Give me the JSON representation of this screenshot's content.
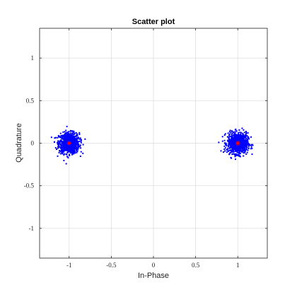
{
  "chart_data": {
    "type": "scatter",
    "title": "Scatter plot",
    "xlabel": "In-Phase",
    "ylabel": "Quadrature",
    "xlim": [
      -1.35,
      1.35
    ],
    "ylim": [
      -1.35,
      1.35
    ],
    "xticks": [
      -1,
      -0.5,
      0,
      0.5,
      1
    ],
    "xtick_labels": [
      "-1",
      "-0.5",
      "0",
      "0.5",
      "1"
    ],
    "yticks": [
      -1,
      -0.5,
      0,
      0.5,
      1
    ],
    "ytick_labels": [
      "-1",
      "-0.5",
      "0",
      "0.5",
      "1"
    ],
    "grid": true,
    "legend": "none",
    "clusters": [
      {
        "center": [
          -1,
          0
        ],
        "spread": 0.06,
        "count": 900
      },
      {
        "center": [
          1,
          0
        ],
        "spread": 0.06,
        "count": 900
      }
    ],
    "reference_points": [
      {
        "x": -1,
        "y": 0
      },
      {
        "x": 1,
        "y": 0
      }
    ],
    "colors": {
      "samples": "#0000ff",
      "reference": "#ff0000"
    }
  }
}
